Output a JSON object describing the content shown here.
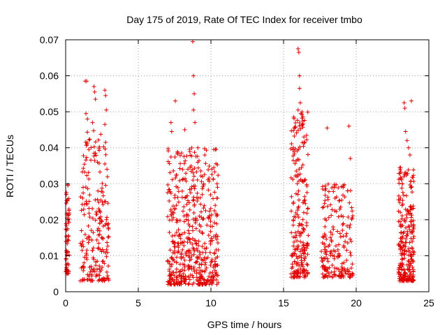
{
  "chart_data": {
    "type": "scatter",
    "title": "Day 175 of 2019, Rate Of TEC Index for receiver tmbo",
    "xlabel": "GPS time / hours",
    "ylabel": "ROTI / TECUs",
    "xlim": [
      0,
      25
    ],
    "ylim": [
      0,
      0.07
    ],
    "grid": true,
    "legend": "none",
    "marker": "+",
    "series_color": "#e00000",
    "x_ticks": [
      0,
      5,
      10,
      15,
      20,
      25
    ],
    "x_tick_labels": [
      "0",
      "5",
      "10",
      "15",
      "20",
      "25"
    ],
    "y_ticks": [
      0,
      0.01,
      0.02,
      0.03,
      0.04,
      0.05,
      0.06,
      0.07
    ],
    "y_tick_labels": [
      "0",
      "0.01",
      "0.02",
      "0.03",
      "0.04",
      "0.05",
      "0.06",
      "0.07"
    ],
    "series": [
      {
        "name": "ROTI",
        "clusters": [
          {
            "x_range": [
              0.0,
              0.25
            ],
            "y_range": [
              0.005,
              0.03
            ],
            "count": 60
          },
          {
            "x_range": [
              1.0,
              3.0
            ],
            "y_range": [
              0.003,
              0.045
            ],
            "count": 220
          },
          {
            "x_range": [
              7.0,
              10.5
            ],
            "y_range": [
              0.002,
              0.04
            ],
            "count": 520
          },
          {
            "x_range": [
              15.5,
              16.7
            ],
            "y_range": [
              0.004,
              0.05
            ],
            "count": 220
          },
          {
            "x_range": [
              17.6,
              19.8
            ],
            "y_range": [
              0.004,
              0.03
            ],
            "count": 200
          },
          {
            "x_range": [
              22.9,
              24.0
            ],
            "y_range": [
              0.003,
              0.035
            ],
            "count": 260
          }
        ],
        "points": [
          {
            "x": 1.35,
            "y": 0.0585
          },
          {
            "x": 1.45,
            "y": 0.0585
          },
          {
            "x": 1.4,
            "y": 0.0495
          },
          {
            "x": 1.5,
            "y": 0.048
          },
          {
            "x": 1.95,
            "y": 0.057
          },
          {
            "x": 2.0,
            "y": 0.0555
          },
          {
            "x": 2.05,
            "y": 0.0535
          },
          {
            "x": 1.85,
            "y": 0.047
          },
          {
            "x": 2.7,
            "y": 0.056
          },
          {
            "x": 2.75,
            "y": 0.0545
          },
          {
            "x": 2.8,
            "y": 0.0505
          },
          {
            "x": 2.7,
            "y": 0.0465
          },
          {
            "x": 2.75,
            "y": 0.0415
          },
          {
            "x": 2.7,
            "y": 0.0355
          },
          {
            "x": 1.6,
            "y": 0.0395
          },
          {
            "x": 7.25,
            "y": 0.047
          },
          {
            "x": 7.3,
            "y": 0.0445
          },
          {
            "x": 7.55,
            "y": 0.053
          },
          {
            "x": 8.2,
            "y": 0.045
          },
          {
            "x": 8.75,
            "y": 0.0695
          },
          {
            "x": 8.8,
            "y": 0.06
          },
          {
            "x": 8.85,
            "y": 0.055
          },
          {
            "x": 8.8,
            "y": 0.0505
          },
          {
            "x": 8.9,
            "y": 0.047
          },
          {
            "x": 9.1,
            "y": 0.04
          },
          {
            "x": 10.2,
            "y": 0.0395
          },
          {
            "x": 15.7,
            "y": 0.0485
          },
          {
            "x": 15.75,
            "y": 0.0455
          },
          {
            "x": 16.0,
            "y": 0.0675
          },
          {
            "x": 16.05,
            "y": 0.0665
          },
          {
            "x": 16.1,
            "y": 0.06
          },
          {
            "x": 16.1,
            "y": 0.0565
          },
          {
            "x": 16.15,
            "y": 0.0525
          },
          {
            "x": 16.0,
            "y": 0.0505
          },
          {
            "x": 16.2,
            "y": 0.0495
          },
          {
            "x": 16.3,
            "y": 0.0465
          },
          {
            "x": 16.4,
            "y": 0.043
          },
          {
            "x": 16.45,
            "y": 0.0415
          },
          {
            "x": 18.0,
            "y": 0.0455
          },
          {
            "x": 19.5,
            "y": 0.046
          },
          {
            "x": 19.6,
            "y": 0.037
          },
          {
            "x": 18.5,
            "y": 0.029
          },
          {
            "x": 19.1,
            "y": 0.029
          },
          {
            "x": 23.3,
            "y": 0.0525
          },
          {
            "x": 23.35,
            "y": 0.051
          },
          {
            "x": 23.8,
            "y": 0.053
          },
          {
            "x": 23.4,
            "y": 0.0445
          },
          {
            "x": 23.5,
            "y": 0.042
          },
          {
            "x": 23.6,
            "y": 0.04
          },
          {
            "x": 23.7,
            "y": 0.038
          }
        ]
      }
    ]
  }
}
